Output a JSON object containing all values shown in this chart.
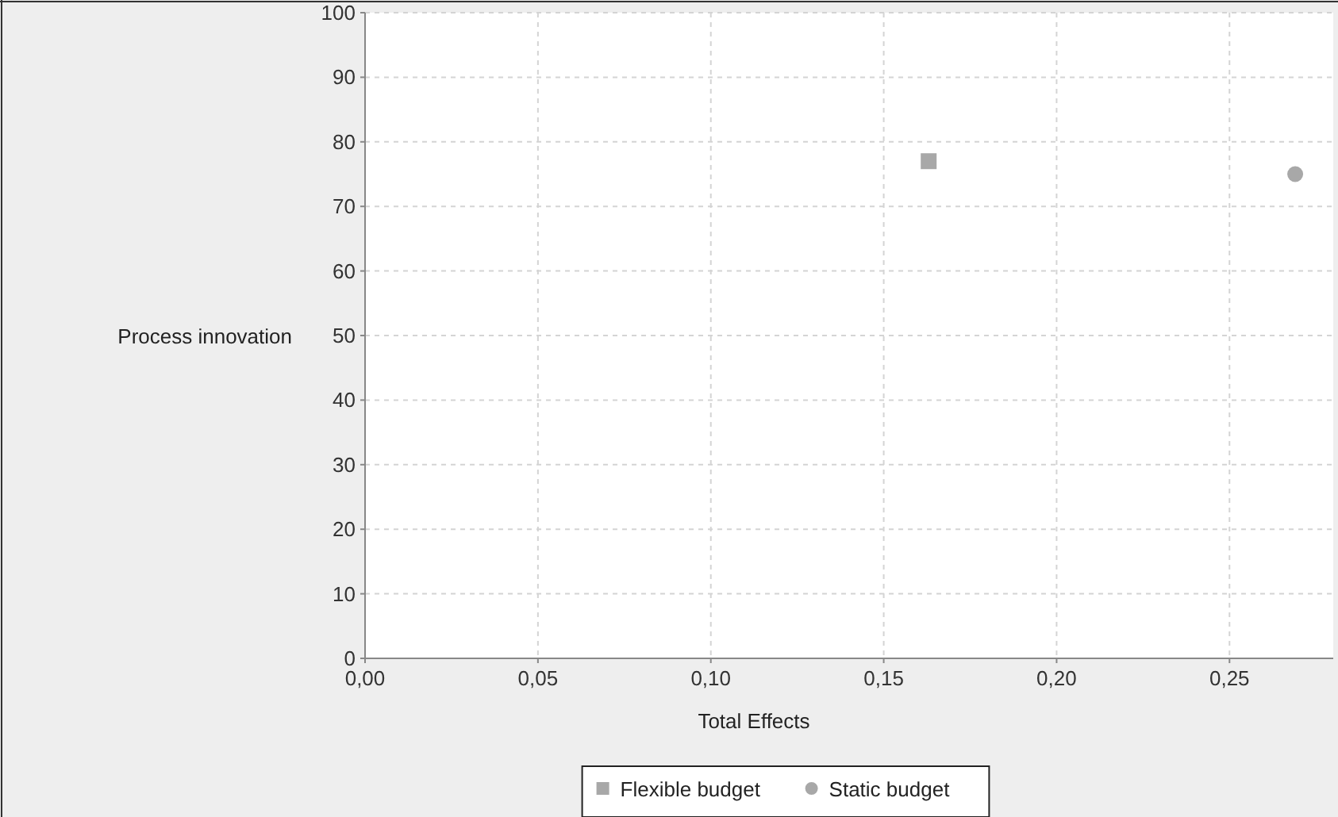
{
  "chart_data": {
    "type": "scatter",
    "xlabel": "Total Effects",
    "ylabel": "Process innovation",
    "xlim": [
      0,
      0.28
    ],
    "xticks": [
      {
        "value": 0,
        "label": "0,00"
      },
      {
        "value": 0.05,
        "label": "0,05"
      },
      {
        "value": 0.1,
        "label": "0,10"
      },
      {
        "value": 0.15,
        "label": "0,15"
      },
      {
        "value": 0.2,
        "label": "0,20"
      },
      {
        "value": 0.25,
        "label": "0,25"
      }
    ],
    "ylim": [
      0,
      100
    ],
    "yticks": [
      0,
      10,
      20,
      30,
      40,
      50,
      60,
      70,
      80,
      90,
      100
    ],
    "grid": true,
    "legend": "bottom",
    "series": [
      {
        "name": "Flexible budget",
        "color": "#a8a8a8",
        "marker": "square",
        "x": [
          0.163
        ],
        "values": [
          77
        ]
      },
      {
        "name": "Static budget",
        "color": "#a8a8a8",
        "marker": "circle",
        "x": [
          0.269
        ],
        "values": [
          75
        ]
      }
    ]
  }
}
